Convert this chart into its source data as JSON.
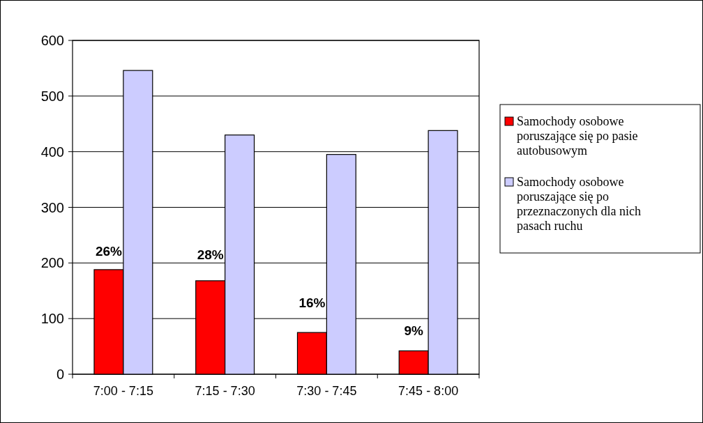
{
  "chart_data": {
    "type": "bar",
    "categories": [
      "7:00 - 7:15",
      "7:15 - 7:30",
      "7:30 - 7:45",
      "7:45 - 8:00"
    ],
    "series": [
      {
        "name": "Samochody osobowe poruszające się po pasie autobusowym",
        "color": "#ff0000",
        "values": [
          188,
          168,
          75,
          42
        ]
      },
      {
        "name": "Samochody osobowe poruszające się po przeznaczonych dla nich pasach ruchu",
        "color": "#ccccff",
        "values": [
          546,
          430,
          395,
          438
        ]
      }
    ],
    "annotations": [
      {
        "text": "26%",
        "x": "7:00 - 7:15",
        "y": 221
      },
      {
        "text": "28%",
        "x": "7:15 - 7:30",
        "y": 215
      },
      {
        "text": "16%",
        "x": "7:30 - 7:45",
        "y": 129
      },
      {
        "text": "9%",
        "x": "7:45 - 8:00",
        "y": 78
      }
    ],
    "ylim": [
      0,
      600
    ],
    "yticks": [
      0,
      100,
      200,
      300,
      400,
      500,
      600
    ],
    "grid": "y",
    "legend": "right"
  }
}
